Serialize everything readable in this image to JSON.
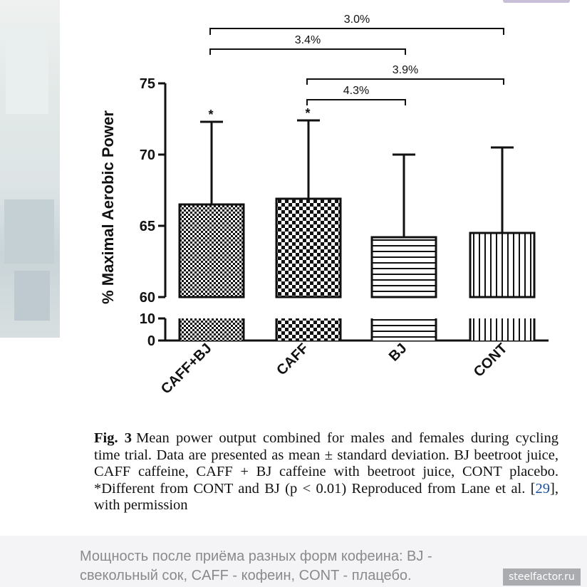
{
  "chart_data": {
    "type": "bar",
    "categories": [
      "CAFF+BJ",
      "CAFF",
      "BJ",
      "CONT"
    ],
    "values": [
      66.5,
      66.9,
      64.2,
      64.5
    ],
    "error_upper": [
      72.3,
      72.4,
      70.0,
      70.5
    ],
    "ylabel": "% Maximal Aerobic Power",
    "ylim_lower": [
      0,
      10
    ],
    "ylim_upper": [
      60,
      75
    ],
    "yticks_upper": [
      "75",
      "70",
      "65",
      "60"
    ],
    "yticks_lower": [
      "10",
      "0"
    ],
    "axis_break": true,
    "significance_marks": [
      "*",
      "*",
      "",
      ""
    ],
    "comparisons": [
      {
        "from": "CAFF+BJ",
        "to": "CONT",
        "label": "3.0%"
      },
      {
        "from": "CAFF+BJ",
        "to": "BJ",
        "label": "3.4%"
      },
      {
        "from": "CAFF",
        "to": "CONT",
        "label": "3.9%"
      },
      {
        "from": "CAFF",
        "to": "BJ",
        "label": "4.3%"
      }
    ],
    "patterns": [
      "fine-checker",
      "checker",
      "horizontal-lines",
      "vertical-lines"
    ]
  },
  "caption": {
    "fig_label": "Fig. 3",
    "text_before_ref": "Mean power output combined for males and females during cycling time trial. Data are presented as mean ± standard deviation. BJ beetroot juice, CAFF caffeine, CAFF + BJ caffeine with beetroot juice, CONT placebo. *Different from CONT and BJ (p < 0.01) Reproduced from Lane et al. [",
    "ref": "29",
    "text_after_ref": "], with permission"
  },
  "subcaption": "Мощность после приёма разных форм кофеина: BJ - свекольный сок, CAFF - кофеин, CONT - плацебо.",
  "watermark": "steelfactor.ru",
  "colors": {
    "ink": "#111111",
    "caption_gray": "#8a8a8e",
    "watermark_bg": "#a9abaf",
    "link": "#1a4fa0"
  }
}
